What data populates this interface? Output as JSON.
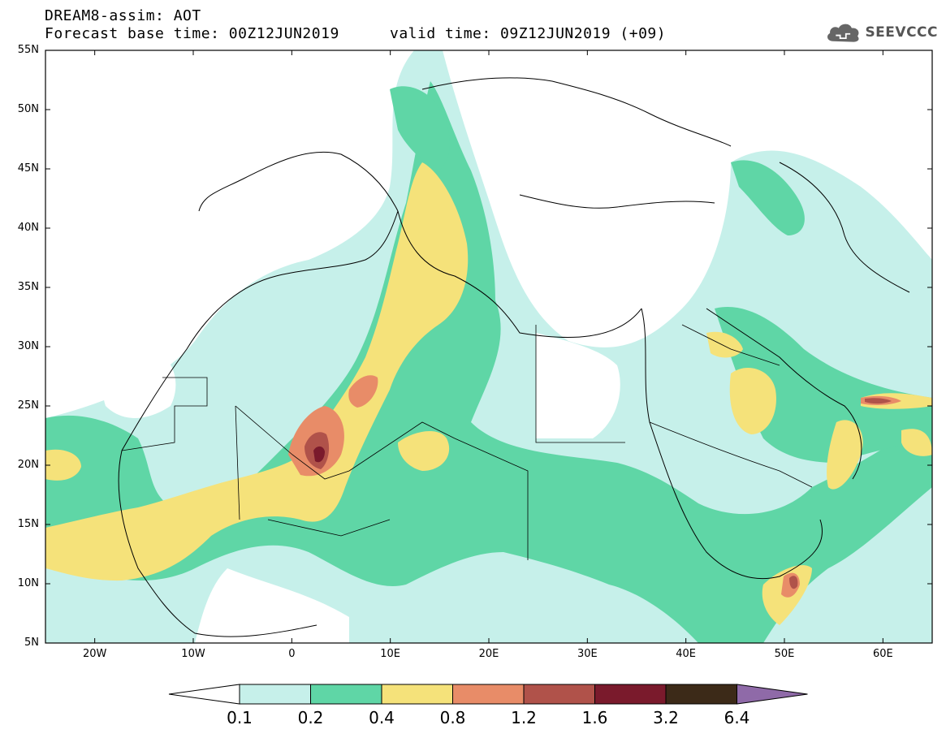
{
  "header": {
    "title": "DREAM8-assim: AOT",
    "base_time": "Forecast base time: 00Z12JUN2019",
    "valid_time": "valid time: 09Z12JUN2019 (+09)"
  },
  "logo": {
    "text": "SEEVCCC",
    "icon": "cloud-icon"
  },
  "axes": {
    "lat_labels": [
      "55N",
      "50N",
      "45N",
      "40N",
      "35N",
      "30N",
      "25N",
      "20N",
      "15N",
      "10N",
      "5N"
    ],
    "lon_labels": [
      "20W",
      "10W",
      "0",
      "10E",
      "20E",
      "30E",
      "40E",
      "50E",
      "60E"
    ],
    "lat_range": [
      5,
      55
    ],
    "lon_range": [
      -25,
      65
    ]
  },
  "colorbar": {
    "levels": [
      "0.1",
      "0.2",
      "0.4",
      "0.8",
      "1.2",
      "1.6",
      "3.2",
      "6.4"
    ],
    "colors": [
      "#c6f0ea",
      "#5fd6a6",
      "#f5e27a",
      "#e88c68",
      "#b0524a",
      "#7a1a2c",
      "#3c2a18",
      "#8f6aa8"
    ],
    "below_color": "#ffffff"
  },
  "map": {
    "projection": "lat-lon",
    "field": "aerosol optical thickness"
  }
}
